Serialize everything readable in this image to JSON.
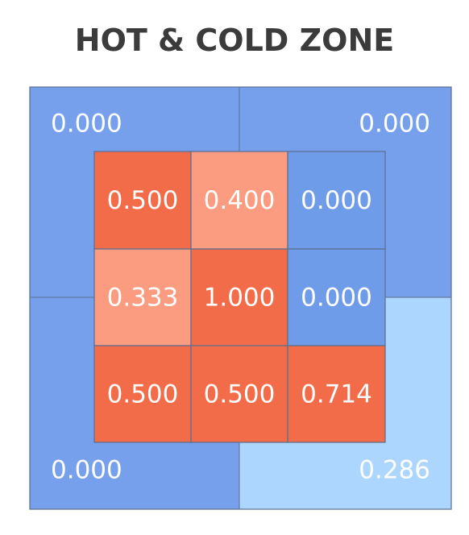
{
  "chart_data": {
    "type": "heatmap",
    "title": "HOT & COLD ZONE",
    "grid": {
      "rows": 3,
      "cols": 3,
      "values": [
        [
          0.5,
          0.4,
          0.0
        ],
        [
          0.333,
          1.0,
          0.0
        ],
        [
          0.5,
          0.5,
          0.714
        ]
      ],
      "labels": [
        [
          "0.500",
          "0.400",
          "0.000"
        ],
        [
          "0.333",
          "1.000",
          "0.000"
        ],
        [
          "0.500",
          "0.500",
          "0.714"
        ]
      ]
    },
    "outer_zones": {
      "top_left": {
        "value": 0.0,
        "label": "0.000"
      },
      "top_right": {
        "value": 0.0,
        "label": "0.000"
      },
      "bottom_left": {
        "value": 0.0,
        "label": "0.000"
      },
      "bottom_right": {
        "value": 0.286,
        "label": "0.286"
      }
    },
    "colors": {
      "hot": "#f26c4a",
      "warm": "#fb9c80",
      "cold": "#6f9ce8",
      "outer_cold": "#76a0eb",
      "cool": "#acd6fd",
      "border": "#5b6e8f",
      "text": "#ffffff",
      "title": "#3b3b3b"
    }
  }
}
